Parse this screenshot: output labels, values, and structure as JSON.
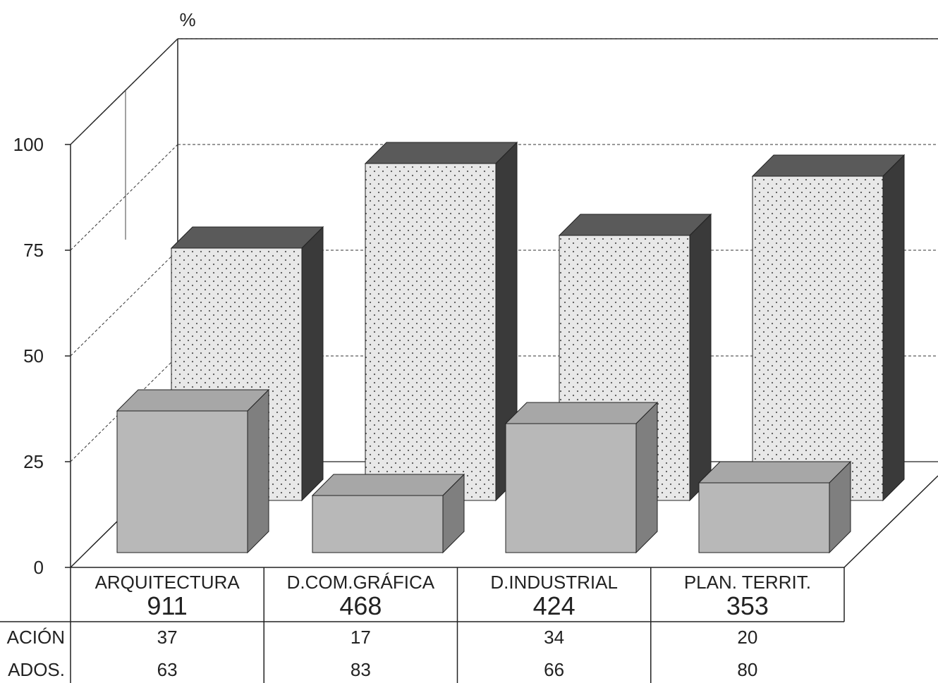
{
  "chart_data": {
    "type": "bar",
    "style": "3d-clustered-columns-with-data-table",
    "ylabel": "%",
    "ylim": [
      0,
      100
    ],
    "yticks": [
      0,
      25,
      50,
      75,
      100
    ],
    "grid": true,
    "categories": [
      "ARQUITECTURA",
      "D.COM.GRÁFICA",
      "D.INDUSTRIAL",
      "PLAN. TERRIT."
    ],
    "totals": [
      "911",
      "468",
      "424",
      "353"
    ],
    "series": [
      {
        "name": "ACIÓN",
        "values": [
          37,
          17,
          34,
          20
        ],
        "color": "#b8b8b8"
      },
      {
        "name": "ADOS.",
        "values": [
          63,
          83,
          66,
          80
        ],
        "color": "#e6e6e6"
      }
    ]
  }
}
